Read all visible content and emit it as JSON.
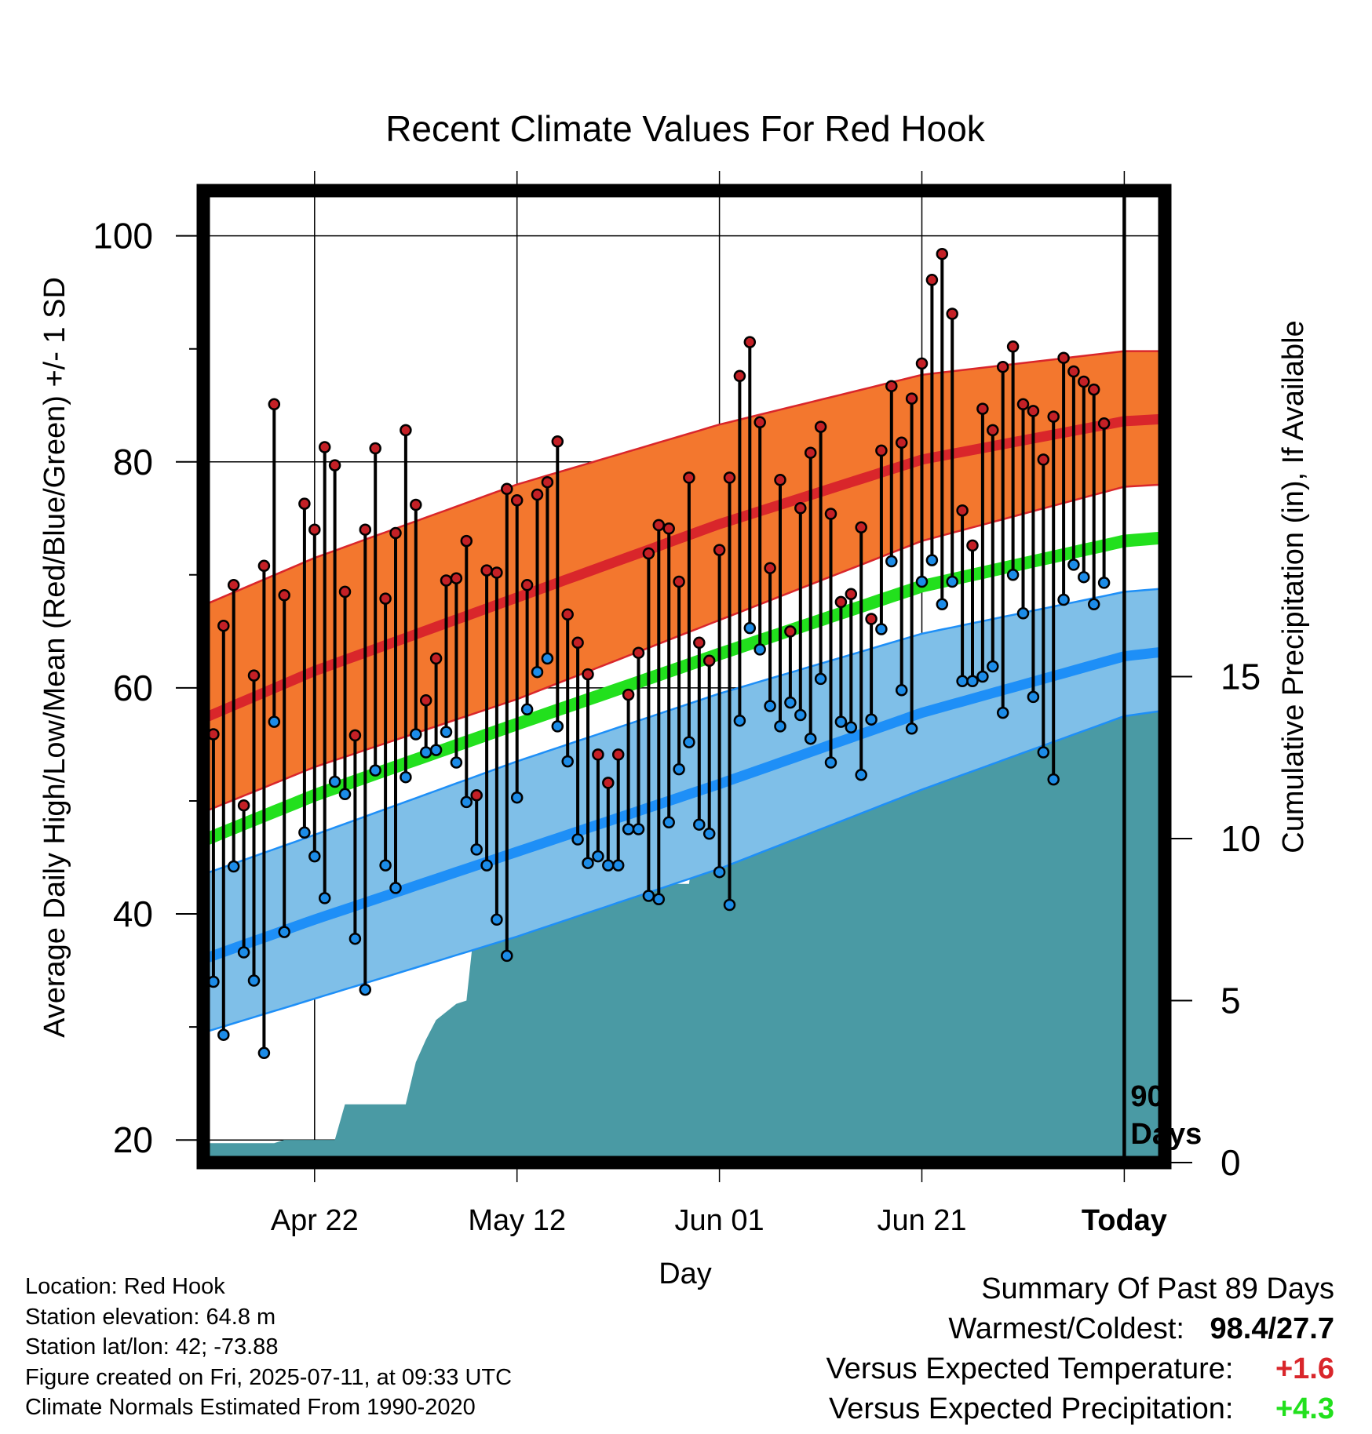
{
  "chart_data": {
    "type": "line",
    "title": "Recent Climate Values For Red Hook",
    "xlabel": "Day",
    "ylabel": "Average Daily High/Low/Mean (Red/Blue/Green) +/- 1 SD",
    "y2label": "Cumulative Precipitation (in), If Available",
    "x_start": "2025-04-11",
    "x_end": "2025-07-15",
    "today": "2025-07-11",
    "xticks": [
      {
        "date": "2025-04-22",
        "label": "Apr 22"
      },
      {
        "date": "2025-05-12",
        "label": "May 12"
      },
      {
        "date": "2025-06-01",
        "label": "Jun 01"
      },
      {
        "date": "2025-06-21",
        "label": "Jun 21"
      },
      {
        "date": "2025-07-11",
        "label": "Today"
      }
    ],
    "ylim": [
      18,
      104
    ],
    "yticks": [
      20,
      40,
      60,
      80,
      100
    ],
    "y2lim": [
      0,
      30
    ],
    "y2ticks": [
      0,
      5,
      10,
      15
    ],
    "period_label": "90 Days",
    "grid": true,
    "colors": {
      "high": "#d9262b",
      "high_band": "#f3772e",
      "low": "#1e8ff7",
      "low_band": "#7fbfe8",
      "mean": "#22e01d",
      "precip": "#4a9aa4",
      "obs_high": "#c42026",
      "obs_low": "#1c8ce8"
    },
    "normals": {
      "high": {
        "x": [
          "2025-04-11",
          "2025-04-22",
          "2025-05-12",
          "2025-06-01",
          "2025-06-21",
          "2025-07-11",
          "2025-07-15"
        ],
        "y": [
          57.3,
          61.5,
          68.0,
          74.5,
          80.2,
          83.6,
          83.8
        ]
      },
      "high_upper": {
        "x": [
          "2025-04-11",
          "2025-04-22",
          "2025-05-12",
          "2025-06-01",
          "2025-06-21",
          "2025-07-11",
          "2025-07-15"
        ],
        "y": [
          67.3,
          71.5,
          78.0,
          83.3,
          87.7,
          89.8,
          89.8
        ]
      },
      "high_lower": {
        "x": [
          "2025-04-11",
          "2025-04-22",
          "2025-05-12",
          "2025-06-01",
          "2025-06-21",
          "2025-07-11",
          "2025-07-15"
        ],
        "y": [
          49.0,
          53.0,
          59.0,
          66.0,
          73.0,
          77.8,
          78.0
        ]
      },
      "low": {
        "x": [
          "2025-04-11",
          "2025-04-22",
          "2025-05-12",
          "2025-06-01",
          "2025-06-21",
          "2025-07-11",
          "2025-07-15"
        ],
        "y": [
          36.0,
          39.5,
          45.5,
          51.5,
          57.8,
          62.8,
          63.2
        ]
      },
      "low_upper": {
        "x": [
          "2025-04-11",
          "2025-04-22",
          "2025-05-12",
          "2025-06-01",
          "2025-06-21",
          "2025-07-11",
          "2025-07-15"
        ],
        "y": [
          43.5,
          47.0,
          53.5,
          59.5,
          64.8,
          68.5,
          68.8
        ]
      },
      "low_lower": {
        "x": [
          "2025-04-11",
          "2025-04-22",
          "2025-05-12",
          "2025-06-01",
          "2025-06-21",
          "2025-07-11",
          "2025-07-15"
        ],
        "y": [
          29.5,
          32.5,
          38.0,
          44.0,
          51.0,
          57.5,
          58.0
        ]
      },
      "mean": {
        "x": [
          "2025-04-11",
          "2025-04-22",
          "2025-05-12",
          "2025-06-01",
          "2025-06-21",
          "2025-07-11",
          "2025-07-15"
        ],
        "y": [
          46.5,
          50.5,
          56.8,
          63.0,
          69.0,
          73.0,
          73.3
        ]
      }
    },
    "observed": {
      "dates": [
        "2025-04-11",
        "2025-04-12",
        "2025-04-13",
        "2025-04-14",
        "2025-04-15",
        "2025-04-16",
        "2025-04-17",
        "2025-04-18",
        "2025-04-19",
        "2025-04-20",
        "2025-04-21",
        "2025-04-22",
        "2025-04-23",
        "2025-04-24",
        "2025-04-25",
        "2025-04-26",
        "2025-04-27",
        "2025-04-28",
        "2025-04-29",
        "2025-04-30",
        "2025-05-01",
        "2025-05-02",
        "2025-05-03",
        "2025-05-04",
        "2025-05-05",
        "2025-05-06",
        "2025-05-07",
        "2025-05-08",
        "2025-05-09",
        "2025-05-10",
        "2025-05-11",
        "2025-05-12",
        "2025-05-13",
        "2025-05-14",
        "2025-05-15",
        "2025-05-16",
        "2025-05-17",
        "2025-05-18",
        "2025-05-19",
        "2025-05-20",
        "2025-05-21",
        "2025-05-22",
        "2025-05-23",
        "2025-05-24",
        "2025-05-25",
        "2025-05-26",
        "2025-05-27",
        "2025-05-28",
        "2025-05-29",
        "2025-05-30",
        "2025-05-31",
        "2025-06-01",
        "2025-06-02",
        "2025-06-03",
        "2025-06-04",
        "2025-06-05",
        "2025-06-06",
        "2025-06-07",
        "2025-06-08",
        "2025-06-09",
        "2025-06-10",
        "2025-06-11",
        "2025-06-12",
        "2025-06-13",
        "2025-06-14",
        "2025-06-15",
        "2025-06-16",
        "2025-06-17",
        "2025-06-18",
        "2025-06-19",
        "2025-06-20",
        "2025-06-21",
        "2025-06-22",
        "2025-06-23",
        "2025-06-24",
        "2025-06-25",
        "2025-06-26",
        "2025-06-27",
        "2025-06-28",
        "2025-06-29",
        "2025-06-30",
        "2025-07-01",
        "2025-07-02",
        "2025-07-03",
        "2025-07-04",
        "2025-07-05",
        "2025-07-06",
        "2025-07-07",
        "2025-07-08",
        "2025-07-09",
        "2025-07-10"
      ],
      "high": [
        39.2,
        55.9,
        65.5,
        69.1,
        49.6,
        61.1,
        70.8,
        85.1,
        68.2,
        null,
        76.3,
        74.0,
        81.3,
        79.7,
        68.5,
        55.8,
        74.0,
        81.2,
        67.9,
        73.7,
        82.8,
        76.2,
        58.9,
        62.6,
        69.5,
        69.7,
        73.0,
        50.5,
        70.4,
        70.2,
        77.6,
        76.6,
        69.1,
        77.1,
        78.2,
        81.8,
        66.5,
        64.0,
        61.2,
        54.1,
        51.6,
        54.1,
        59.4,
        63.1,
        71.9,
        74.4,
        74.1,
        69.4,
        78.6,
        64.0,
        62.4,
        72.2,
        78.6,
        87.6,
        90.6,
        83.5,
        70.6,
        78.4,
        65.0,
        75.9,
        80.8,
        83.1,
        75.4,
        67.6,
        68.3,
        74.2,
        66.1,
        81.0,
        86.7,
        81.7,
        85.6,
        88.7,
        96.1,
        98.4,
        93.1,
        75.7,
        72.6,
        84.7,
        82.8,
        88.4,
        90.2,
        85.1,
        84.5,
        80.2,
        84.0,
        89.2,
        88.0,
        87.1,
        86.4,
        83.4,
        null
      ],
      "low": [
        32.4,
        34.0,
        29.3,
        44.2,
        36.6,
        34.1,
        27.7,
        57.0,
        38.4,
        null,
        47.2,
        45.1,
        41.4,
        51.7,
        50.6,
        37.8,
        33.3,
        52.7,
        44.3,
        42.3,
        52.1,
        55.9,
        54.3,
        54.5,
        56.1,
        53.4,
        49.9,
        45.7,
        44.3,
        39.5,
        36.3,
        50.3,
        58.1,
        61.4,
        62.6,
        56.6,
        53.5,
        46.6,
        44.5,
        45.1,
        44.3,
        44.3,
        47.5,
        47.5,
        41.6,
        41.3,
        48.1,
        52.8,
        55.2,
        47.9,
        47.1,
        43.7,
        40.8,
        57.1,
        65.3,
        63.4,
        58.4,
        56.6,
        58.7,
        57.6,
        55.5,
        60.8,
        53.4,
        57.0,
        56.5,
        52.3,
        57.2,
        65.2,
        71.2,
        59.8,
        56.4,
        69.4,
        71.3,
        67.4,
        69.4,
        60.6,
        60.6,
        61.0,
        61.9,
        57.8,
        70.0,
        66.6,
        59.2,
        54.3,
        51.9,
        67.8,
        70.9,
        69.8,
        67.4,
        69.3,
        null
      ]
    },
    "precip": {
      "x": [
        "2025-04-11",
        "2025-04-18",
        "2025-04-19",
        "2025-04-24",
        "2025-04-25",
        "2025-05-01",
        "2025-05-02",
        "2025-05-03",
        "2025-05-04",
        "2025-05-06",
        "2025-05-07",
        "2025-05-08",
        "2025-05-12",
        "2025-05-13",
        "2025-05-17",
        "2025-05-19",
        "2025-05-20",
        "2025-05-21",
        "2025-05-29",
        "2025-05-30",
        "2025-06-02",
        "2025-06-03",
        "2025-06-04",
        "2025-06-06",
        "2025-06-08",
        "2025-06-12",
        "2025-06-13",
        "2025-06-16",
        "2025-06-17",
        "2025-06-18",
        "2025-06-21",
        "2025-06-22",
        "2025-06-28",
        "2025-06-29",
        "2025-06-30",
        "2025-07-01",
        "2025-07-05",
        "2025-07-06",
        "2025-07-07",
        "2025-07-15"
      ],
      "y": [
        0.6,
        0.6,
        0.7,
        0.7,
        1.8,
        1.8,
        3.1,
        3.8,
        4.4,
        4.9,
        5.0,
        7.9,
        7.9,
        8.0,
        8.0,
        8.4,
        8.5,
        8.6,
        8.6,
        11.0,
        11.0,
        11.5,
        11.7,
        12.1,
        12.4,
        12.4,
        12.6,
        12.6,
        13.2,
        13.4,
        13.4,
        13.5,
        13.5,
        14.1,
        14.2,
        14.4,
        14.4,
        14.6,
        15.1,
        15.1
      ]
    }
  },
  "info": {
    "location": "Location: Red Hook",
    "elevation": "Station elevation: 64.8 m",
    "latlon": "Station lat/lon: 42; -73.88",
    "created": "Figure created on Fri, 2025-07-11, at 09:33 UTC",
    "normals": "Climate Normals Estimated From 1990-2020"
  },
  "summary": {
    "title": "Summary Of Past 89 Days",
    "warm_cold_label": "Warmest/Coldest:",
    "warm_cold_value": "98.4/27.7",
    "temp_label": "Versus Expected Temperature:",
    "temp_value": "+1.6",
    "temp_color": "#d9262b",
    "precip_label": "Versus Expected Precipitation:",
    "precip_value": "+4.3",
    "precip_color": "#22e01d"
  }
}
